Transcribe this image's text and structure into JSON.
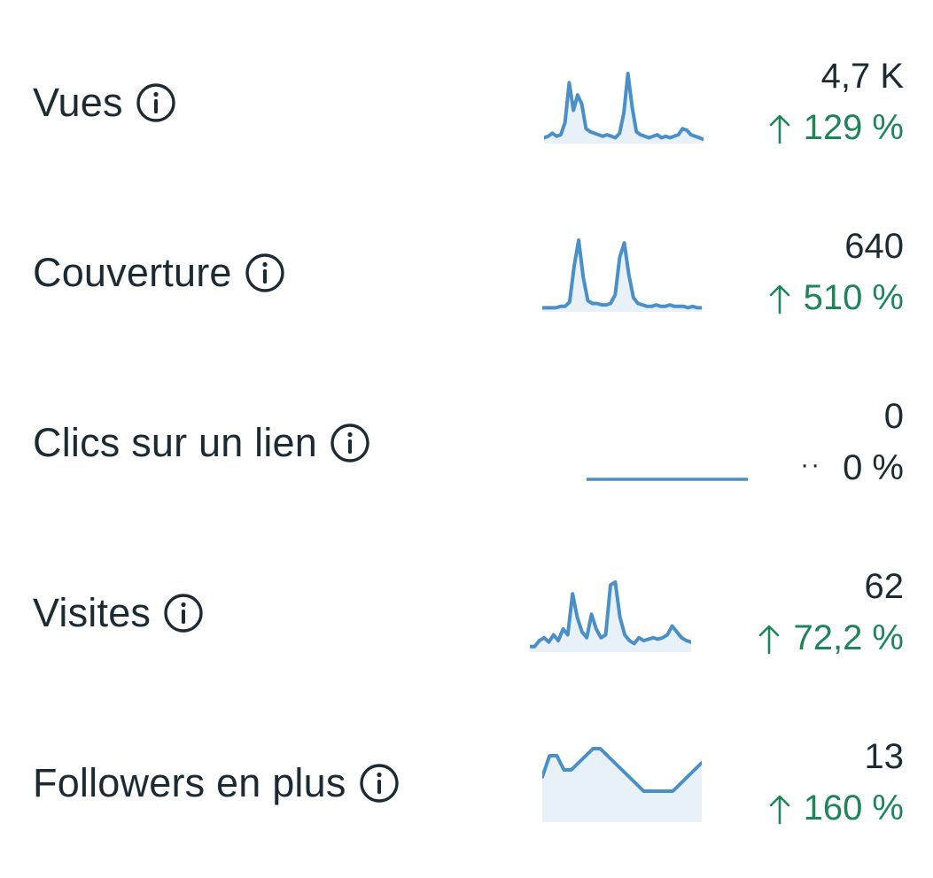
{
  "colors": {
    "text": "#1c2b33",
    "positive": "#1e8559",
    "sparkline": "#4a90c8",
    "sparkline_fill": "#e8f1f8"
  },
  "metrics": [
    {
      "label": "Vues",
      "info_icon": "info-icon",
      "value": "4,7 K",
      "delta": "129 %",
      "trend": "up",
      "sparkline": [
        2,
        3,
        5,
        3,
        4,
        12,
        38,
        20,
        30,
        24,
        8,
        6,
        5,
        4,
        3,
        4,
        3,
        2,
        5,
        18,
        44,
        22,
        6,
        4,
        3,
        2,
        3,
        4,
        2,
        3,
        2,
        3,
        4,
        8,
        7,
        4,
        3,
        2,
        1
      ]
    },
    {
      "label": "Couverture",
      "info_icon": "info-icon",
      "value": "640",
      "delta": "510 %",
      "trend": "up",
      "sparkline": [
        1,
        1,
        1,
        1,
        2,
        2,
        5,
        30,
        48,
        22,
        6,
        4,
        4,
        3,
        3,
        4,
        10,
        36,
        46,
        24,
        8,
        4,
        3,
        2,
        2,
        3,
        2,
        2,
        3,
        2,
        2,
        2,
        1,
        2,
        1,
        1
      ]
    },
    {
      "label": "Clics sur un lien",
      "info_icon": "info-icon",
      "value": "0",
      "delta": "0 %",
      "trend": "neutral",
      "sparkline": [
        0,
        0,
        0,
        0,
        0,
        0,
        0,
        0,
        0,
        0
      ]
    },
    {
      "label": "Visites",
      "info_icon": "info-icon",
      "value": "62",
      "delta": "72,2 %",
      "trend": "up",
      "sparkline": [
        2,
        2,
        6,
        8,
        5,
        10,
        6,
        14,
        10,
        38,
        22,
        12,
        8,
        24,
        14,
        8,
        10,
        44,
        46,
        22,
        10,
        6,
        4,
        8,
        6,
        7,
        8,
        7,
        8,
        10,
        16,
        12,
        8,
        6,
        5
      ]
    },
    {
      "label": "Followers en plus",
      "info_icon": "info-icon",
      "value": "13",
      "delta": "160 %",
      "trend": "up",
      "sparkline": [
        6,
        9,
        9,
        7,
        7,
        8,
        9,
        10,
        10,
        9,
        8,
        7,
        6,
        5,
        4,
        4,
        4,
        4,
        4,
        5,
        6,
        7,
        8
      ]
    }
  ]
}
